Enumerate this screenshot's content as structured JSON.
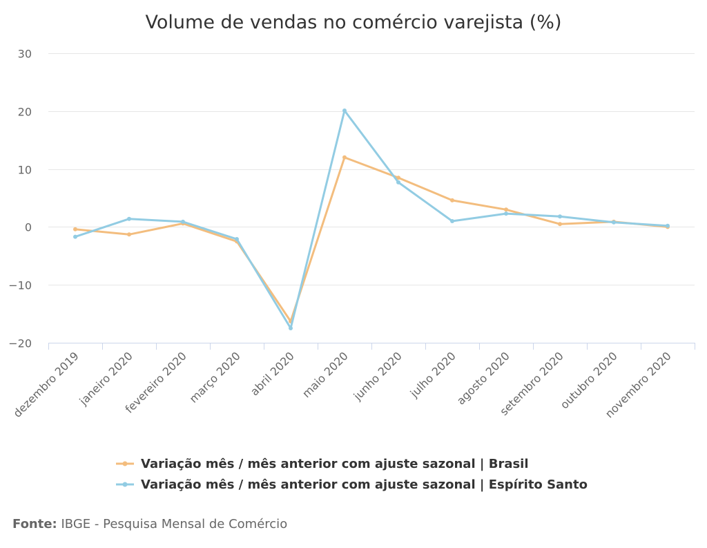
{
  "chart_data": {
    "type": "line",
    "title": "Volume de vendas no comércio varejista (%)",
    "xlabel": "",
    "ylabel": "",
    "ylim": [
      -20,
      30
    ],
    "yticks": [
      "30",
      "20",
      "10",
      "0",
      "−10",
      "−20"
    ],
    "ytick_values": [
      30,
      20,
      10,
      0,
      -10,
      -20
    ],
    "categories": [
      "dezembro 2019",
      "janeiro 2020",
      "fevereiro 2020",
      "março 2020",
      "abril 2020",
      "maio 2020",
      "junho 2020",
      "julho 2020",
      "agosto 2020",
      "setembro 2020",
      "outubro 2020",
      "novembro 2020"
    ],
    "grid": true,
    "legend_position": "bottom",
    "series": [
      {
        "name": "Variação mês / mês anterior com ajuste sazonal | Brasil",
        "color": "#f3bd7e",
        "values": [
          -0.4,
          -1.3,
          0.6,
          -2.5,
          -16.3,
          12.0,
          8.5,
          4.6,
          3.0,
          0.5,
          0.9,
          0.0
        ]
      },
      {
        "name": "Variação mês / mês anterior com ajuste sazonal | Espírito Santo",
        "color": "#92cce3",
        "values": [
          -1.7,
          1.4,
          0.9,
          -2.1,
          -17.5,
          20.1,
          7.7,
          1.0,
          2.3,
          1.8,
          0.8,
          0.2
        ]
      }
    ]
  },
  "source": {
    "label": "Fonte:",
    "text": "IBGE - Pesquisa Mensal de Comércio"
  }
}
